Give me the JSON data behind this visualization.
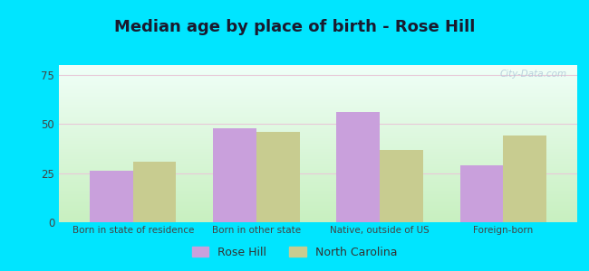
{
  "title": "Median age by place of birth - Rose Hill",
  "categories": [
    "Born in state of residence",
    "Born in other state",
    "Native, outside of US",
    "Foreign-born"
  ],
  "rose_hill_values": [
    26,
    48,
    56,
    29
  ],
  "nc_values": [
    31,
    46,
    37,
    44
  ],
  "rose_hill_color": "#c9a0dc",
  "nc_color": "#c8cc90",
  "background_outer": "#00e5ff",
  "background_inner_top": "#f0fff8",
  "background_inner_bottom": "#c8f0c0",
  "ylim": [
    0,
    80
  ],
  "yticks": [
    0,
    25,
    50,
    75
  ],
  "bar_width": 0.35,
  "legend_labels": [
    "Rose Hill",
    "North Carolina"
  ],
  "title_fontsize": 13,
  "watermark": "City-Data.com"
}
